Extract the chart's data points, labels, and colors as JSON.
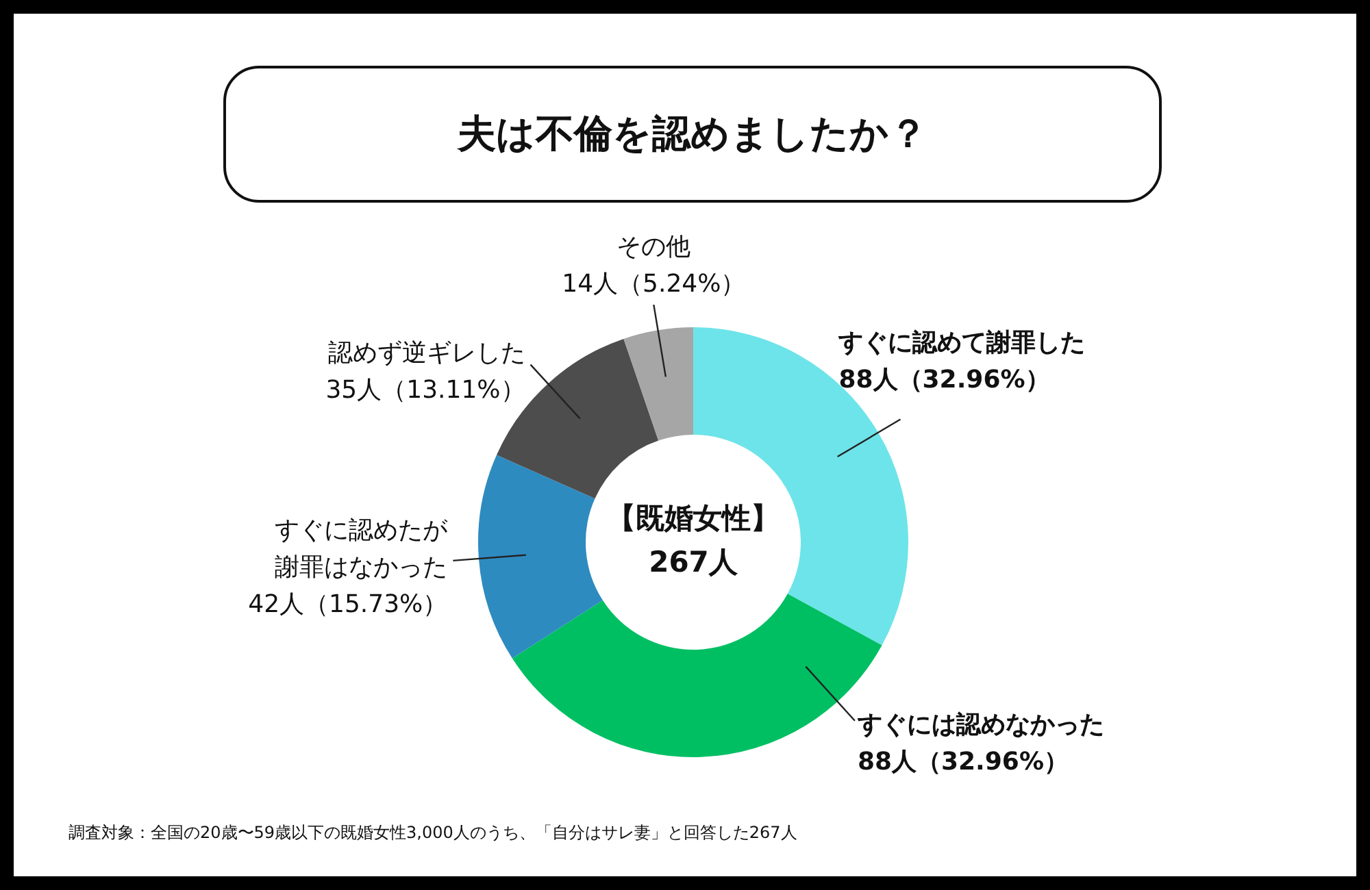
{
  "chart_data": {
    "type": "donut",
    "title": "夫は不倫を認めましたか？",
    "categories": [
      "すぐに認めて謝罪した",
      "すぐには認めなかった",
      "すぐに認めたが謝罪はなかった",
      "認めず逆ギレした",
      "その他"
    ],
    "values": [
      88,
      88,
      42,
      35,
      14
    ],
    "value_labels": [
      "88人（32.96%）",
      "88人（32.96%）",
      "42人（15.73%）",
      "35人（13.11%）",
      "14人（5.24%）"
    ],
    "colors": [
      "#6de4e9",
      "#00bf63",
      "#2e8bc0",
      "#4d4d4d",
      "#a6a6a6"
    ],
    "legend": false,
    "annotations": [
      "【既婚女性】",
      "267人",
      "調査対象：全国の20歳〜59歳以下の既婚女性3,000人のうち、「自分はサレ妻」と回答した267人"
    ]
  }
}
